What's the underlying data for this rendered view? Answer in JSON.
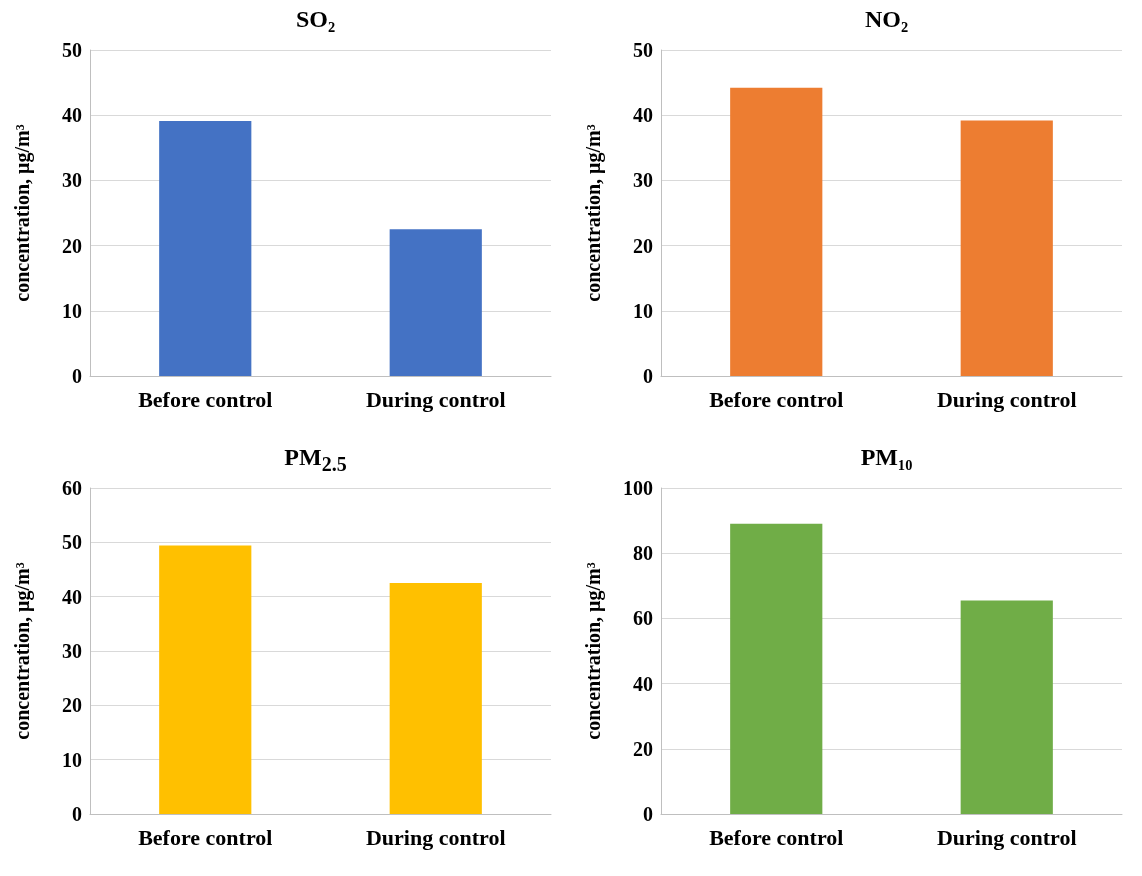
{
  "chart_data": [
    {
      "type": "bar",
      "title": "SO₂",
      "ylabel": "concentration, μg/m³",
      "categories": [
        "Before control",
        "During control"
      ],
      "values": [
        39.1,
        22.5
      ],
      "color": "#4472c4",
      "ylim": [
        0,
        50
      ],
      "yticks": [
        0,
        10,
        20,
        30,
        40,
        50
      ],
      "grid": "y"
    },
    {
      "type": "bar",
      "title": "NO₂",
      "ylabel": "concentration, μg/m³",
      "categories": [
        "Before control",
        "During control"
      ],
      "values": [
        44.2,
        39.2
      ],
      "color": "#ed7d31",
      "ylim": [
        0,
        50
      ],
      "yticks": [
        0,
        10,
        20,
        30,
        40,
        50
      ],
      "grid": "y"
    },
    {
      "type": "bar",
      "title": "PM$_{2.5}$",
      "ylabel": "concentration, μg/m³",
      "categories": [
        "Before control",
        "During control"
      ],
      "values": [
        49.4,
        42.5
      ],
      "color": "#ffc000",
      "ylim": [
        0,
        60
      ],
      "yticks": [
        0,
        10,
        20,
        30,
        40,
        50,
        60
      ],
      "grid": "y"
    },
    {
      "type": "bar",
      "title": "PM₁₀",
      "ylabel": "concentration, μg/m³",
      "categories": [
        "Before control",
        "During control"
      ],
      "values": [
        89,
        65.5
      ],
      "color": "#70ad47",
      "ylim": [
        0,
        100
      ],
      "yticks": [
        0,
        20,
        40,
        60,
        80,
        100
      ],
      "grid": "y"
    }
  ]
}
